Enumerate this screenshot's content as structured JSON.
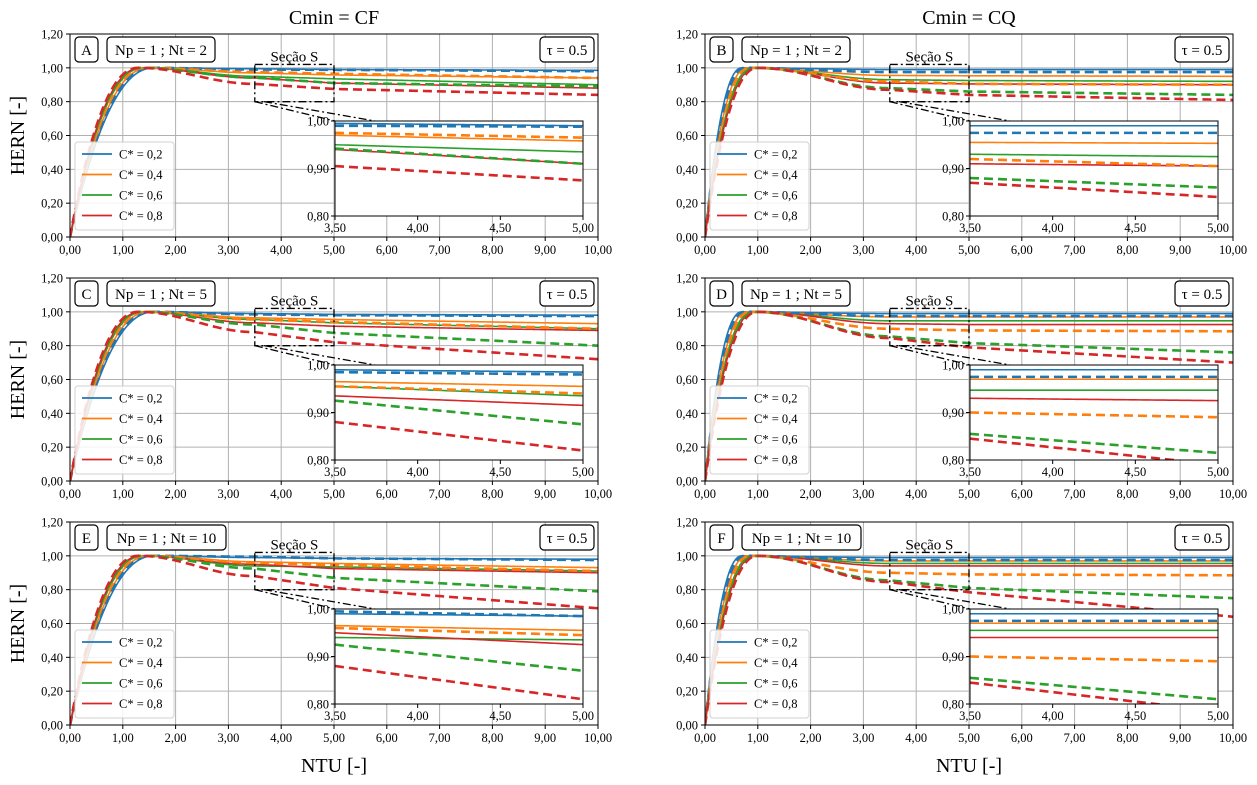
{
  "figure": {
    "col_titles": [
      "Cmin = CF",
      "Cmin = CQ"
    ],
    "xlabel": "NTU [-]",
    "ylabel": "HERN [-]",
    "x_ticks": [
      "0,00",
      "1,00",
      "2,00",
      "3,00",
      "4,00",
      "5,00",
      "6,00",
      "7,00",
      "8,00",
      "9,00",
      "10,00"
    ],
    "y_ticks": [
      "0,00",
      "0,20",
      "0,40",
      "0,60",
      "0,80",
      "1,00",
      "1,20"
    ],
    "inset_x_ticks": [
      "3,50",
      "4,00",
      "4,50",
      "5,00"
    ],
    "inset_y_ticks": [
      "0,80",
      "0,90",
      "1,00"
    ],
    "section_label": "Seção S",
    "tau_label": "τ = 0.5",
    "legend": [
      "C* = 0,2",
      "C* = 0,4",
      "C* = 0,6",
      "C* = 0,8"
    ],
    "colors": [
      "#1f77b4",
      "#ff7f0e",
      "#2ca02c",
      "#d62728"
    ]
  },
  "chart_data": [
    {
      "type": "line",
      "panel": "A",
      "params": "Np = 1 ; Nt = 2",
      "xlim": [
        0,
        10
      ],
      "ylim": [
        0,
        1.2
      ],
      "grid": true,
      "legend_position": "lower-left",
      "inset": {
        "xlim": [
          3.5,
          5.0
        ],
        "ylim": [
          0.8,
          1.0
        ]
      },
      "series": [
        {
          "name": "C* = 0,2",
          "style": "solid",
          "peak_x": 1.6,
          "at_3_5": 0.995,
          "at_5": 0.99,
          "at_10": 0.985
        },
        {
          "name": "C* = 0,4",
          "style": "solid",
          "peak_x": 1.5,
          "at_3_5": 0.97,
          "at_5": 0.958,
          "at_10": 0.94
        },
        {
          "name": "C* = 0,6",
          "style": "solid",
          "peak_x": 1.4,
          "at_3_5": 0.95,
          "at_5": 0.935,
          "at_10": 0.9
        },
        {
          "name": "C* = 0,8",
          "style": "solid",
          "peak_x": 1.35,
          "at_3_5": 0.94,
          "at_5": 0.91,
          "at_10": 0.88
        },
        {
          "name": "C* = 0,2",
          "style": "dashed",
          "peak_x": 1.55,
          "at_3_5": 0.99,
          "at_5": 0.988,
          "at_10": 0.98
        },
        {
          "name": "C* = 0,4",
          "style": "dashed",
          "peak_x": 1.45,
          "at_3_5": 0.975,
          "at_5": 0.965,
          "at_10": 0.94
        },
        {
          "name": "C* = 0,6",
          "style": "dashed",
          "peak_x": 1.35,
          "at_3_5": 0.942,
          "at_5": 0.91,
          "at_10": 0.89
        },
        {
          "name": "C* = 0,8",
          "style": "dashed",
          "peak_x": 1.3,
          "at_3_5": 0.905,
          "at_5": 0.875,
          "at_10": 0.84
        }
      ]
    },
    {
      "type": "line",
      "panel": "B",
      "params": "Np = 1 ; Nt = 2",
      "xlim": [
        0,
        10
      ],
      "ylim": [
        0,
        1.2
      ],
      "grid": true,
      "legend_position": "lower-left",
      "inset": {
        "xlim": [
          3.5,
          5.0
        ],
        "ylim": [
          0.8,
          1.0
        ]
      },
      "series": [
        {
          "name": "C* = 0,2",
          "style": "solid",
          "peak_x": 0.7,
          "at_3_5": 0.99,
          "at_5": 0.99,
          "at_10": 0.99
        },
        {
          "name": "C* = 0,4",
          "style": "solid",
          "peak_x": 0.8,
          "at_3_5": 0.955,
          "at_5": 0.953,
          "at_10": 0.95
        },
        {
          "name": "C* = 0,6",
          "style": "solid",
          "peak_x": 0.9,
          "at_3_5": 0.93,
          "at_5": 0.925,
          "at_10": 0.92
        },
        {
          "name": "C* = 0,8",
          "style": "solid",
          "peak_x": 0.95,
          "at_3_5": 0.91,
          "at_5": 0.905,
          "at_10": 0.9
        },
        {
          "name": "C* = 0,2",
          "style": "dashed",
          "peak_x": 0.75,
          "at_3_5": 0.975,
          "at_5": 0.975,
          "at_10": 0.975
        },
        {
          "name": "C* = 0,4",
          "style": "dashed",
          "peak_x": 0.85,
          "at_3_5": 0.92,
          "at_5": 0.905,
          "at_10": 0.9
        },
        {
          "name": "C* = 0,6",
          "style": "dashed",
          "peak_x": 0.95,
          "at_3_5": 0.88,
          "at_5": 0.86,
          "at_10": 0.84
        },
        {
          "name": "C* = 0,8",
          "style": "dashed",
          "peak_x": 1.0,
          "at_3_5": 0.87,
          "at_5": 0.84,
          "at_10": 0.81
        }
      ]
    },
    {
      "type": "line",
      "panel": "C",
      "params": "Np = 1 ; Nt = 5",
      "xlim": [
        0,
        10
      ],
      "ylim": [
        0,
        1.2
      ],
      "grid": true,
      "legend_position": "lower-left",
      "inset": {
        "xlim": [
          3.5,
          5.0
        ],
        "ylim": [
          0.8,
          1.0
        ]
      },
      "series": [
        {
          "name": "C* = 0,2",
          "style": "solid",
          "peak_x": 1.6,
          "at_3_5": 0.99,
          "at_5": 0.985,
          "at_10": 0.98
        },
        {
          "name": "C* = 0,4",
          "style": "solid",
          "peak_x": 1.5,
          "at_3_5": 0.965,
          "at_5": 0.955,
          "at_10": 0.93
        },
        {
          "name": "C* = 0,6",
          "style": "solid",
          "peak_x": 1.4,
          "at_3_5": 0.955,
          "at_5": 0.935,
          "at_10": 0.9
        },
        {
          "name": "C* = 0,8",
          "style": "solid",
          "peak_x": 1.35,
          "at_3_5": 0.935,
          "at_5": 0.915,
          "at_10": 0.89
        },
        {
          "name": "C* = 0,2",
          "style": "dashed",
          "peak_x": 1.55,
          "at_3_5": 0.985,
          "at_5": 0.98,
          "at_10": 0.975
        },
        {
          "name": "C* = 0,4",
          "style": "dashed",
          "peak_x": 1.45,
          "at_3_5": 0.955,
          "at_5": 0.94,
          "at_10": 0.9
        },
        {
          "name": "C* = 0,6",
          "style": "dashed",
          "peak_x": 1.35,
          "at_3_5": 0.925,
          "at_5": 0.875,
          "at_10": 0.8
        },
        {
          "name": "C* = 0,8",
          "style": "dashed",
          "peak_x": 1.3,
          "at_3_5": 0.88,
          "at_5": 0.82,
          "at_10": 0.72
        }
      ]
    },
    {
      "type": "line",
      "panel": "D",
      "params": "Np = 1 ; Nt = 5",
      "xlim": [
        0,
        10
      ],
      "ylim": [
        0,
        1.2
      ],
      "grid": true,
      "legend_position": "lower-left",
      "inset": {
        "xlim": [
          3.5,
          5.0
        ],
        "ylim": [
          0.8,
          1.0
        ]
      },
      "series": [
        {
          "name": "C* = 0,2",
          "style": "solid",
          "peak_x": 0.7,
          "at_3_5": 0.99,
          "at_5": 0.99,
          "at_10": 0.99
        },
        {
          "name": "C* = 0,4",
          "style": "solid",
          "peak_x": 0.8,
          "at_3_5": 0.97,
          "at_5": 0.97,
          "at_10": 0.97
        },
        {
          "name": "C* = 0,6",
          "style": "solid",
          "peak_x": 0.9,
          "at_3_5": 0.947,
          "at_5": 0.947,
          "at_10": 0.947
        },
        {
          "name": "C* = 0,8",
          "style": "solid",
          "peak_x": 0.95,
          "at_3_5": 0.93,
          "at_5": 0.925,
          "at_10": 0.925
        },
        {
          "name": "C* = 0,2",
          "style": "dashed",
          "peak_x": 0.75,
          "at_3_5": 0.975,
          "at_5": 0.975,
          "at_10": 0.975
        },
        {
          "name": "C* = 0,4",
          "style": "dashed",
          "peak_x": 0.85,
          "at_3_5": 0.9,
          "at_5": 0.89,
          "at_10": 0.885
        },
        {
          "name": "C* = 0,6",
          "style": "dashed",
          "peak_x": 0.95,
          "at_3_5": 0.855,
          "at_5": 0.815,
          "at_10": 0.76
        },
        {
          "name": "C* = 0,8",
          "style": "dashed",
          "peak_x": 1.0,
          "at_3_5": 0.845,
          "at_5": 0.79,
          "at_10": 0.7
        }
      ]
    },
    {
      "type": "line",
      "panel": "E",
      "params": "Np = 1 ; Nt = 10",
      "xlim": [
        0,
        10
      ],
      "ylim": [
        0,
        1.2
      ],
      "grid": true,
      "legend_position": "lower-left",
      "inset": {
        "xlim": [
          3.5,
          5.0
        ],
        "ylim": [
          0.8,
          1.0
        ]
      },
      "series": [
        {
          "name": "C* = 0,2",
          "style": "solid",
          "peak_x": 1.6,
          "at_3_5": 0.99,
          "at_5": 0.985,
          "at_10": 0.98
        },
        {
          "name": "C* = 0,4",
          "style": "solid",
          "peak_x": 1.5,
          "at_3_5": 0.965,
          "at_5": 0.955,
          "at_10": 0.93
        },
        {
          "name": "C* = 0,6",
          "style": "solid",
          "peak_x": 1.4,
          "at_3_5": 0.94,
          "at_5": 0.935,
          "at_10": 0.91
        },
        {
          "name": "C* = 0,8",
          "style": "solid",
          "peak_x": 1.35,
          "at_3_5": 0.95,
          "at_5": 0.925,
          "at_10": 0.9
        },
        {
          "name": "C* = 0,2",
          "style": "dashed",
          "peak_x": 1.55,
          "at_3_5": 0.995,
          "at_5": 0.985,
          "at_10": 0.975
        },
        {
          "name": "C* = 0,4",
          "style": "dashed",
          "peak_x": 1.45,
          "at_3_5": 0.96,
          "at_5": 0.945,
          "at_10": 0.91
        },
        {
          "name": "C* = 0,6",
          "style": "dashed",
          "peak_x": 1.35,
          "at_3_5": 0.925,
          "at_5": 0.87,
          "at_10": 0.79
        },
        {
          "name": "C* = 0,8",
          "style": "dashed",
          "peak_x": 1.3,
          "at_3_5": 0.88,
          "at_5": 0.81,
          "at_10": 0.69
        }
      ]
    },
    {
      "type": "line",
      "panel": "F",
      "params": "Np = 1 ; Nt = 10",
      "xlim": [
        0,
        10
      ],
      "ylim": [
        0,
        1.2
      ],
      "grid": true,
      "legend_position": "lower-left",
      "inset": {
        "xlim": [
          3.5,
          5.0
        ],
        "ylim": [
          0.8,
          1.0
        ]
      },
      "series": [
        {
          "name": "C* = 0,2",
          "style": "solid",
          "peak_x": 0.7,
          "at_3_5": 0.99,
          "at_5": 0.99,
          "at_10": 0.99
        },
        {
          "name": "C* = 0,4",
          "style": "solid",
          "peak_x": 0.8,
          "at_3_5": 0.97,
          "at_5": 0.97,
          "at_10": 0.97
        },
        {
          "name": "C* = 0,6",
          "style": "solid",
          "peak_x": 0.9,
          "at_3_5": 0.955,
          "at_5": 0.955,
          "at_10": 0.955
        },
        {
          "name": "C* = 0,8",
          "style": "solid",
          "peak_x": 0.95,
          "at_3_5": 0.94,
          "at_5": 0.94,
          "at_10": 0.94
        },
        {
          "name": "C* = 0,2",
          "style": "dashed",
          "peak_x": 0.75,
          "at_3_5": 0.975,
          "at_5": 0.975,
          "at_10": 0.975
        },
        {
          "name": "C* = 0,4",
          "style": "dashed",
          "peak_x": 0.85,
          "at_3_5": 0.9,
          "at_5": 0.89,
          "at_10": 0.885
        },
        {
          "name": "C* = 0,6",
          "style": "dashed",
          "peak_x": 0.95,
          "at_3_5": 0.855,
          "at_5": 0.81,
          "at_10": 0.75
        },
        {
          "name": "C* = 0,8",
          "style": "dashed",
          "peak_x": 1.0,
          "at_3_5": 0.845,
          "at_5": 0.785,
          "at_10": 0.64
        }
      ]
    }
  ]
}
